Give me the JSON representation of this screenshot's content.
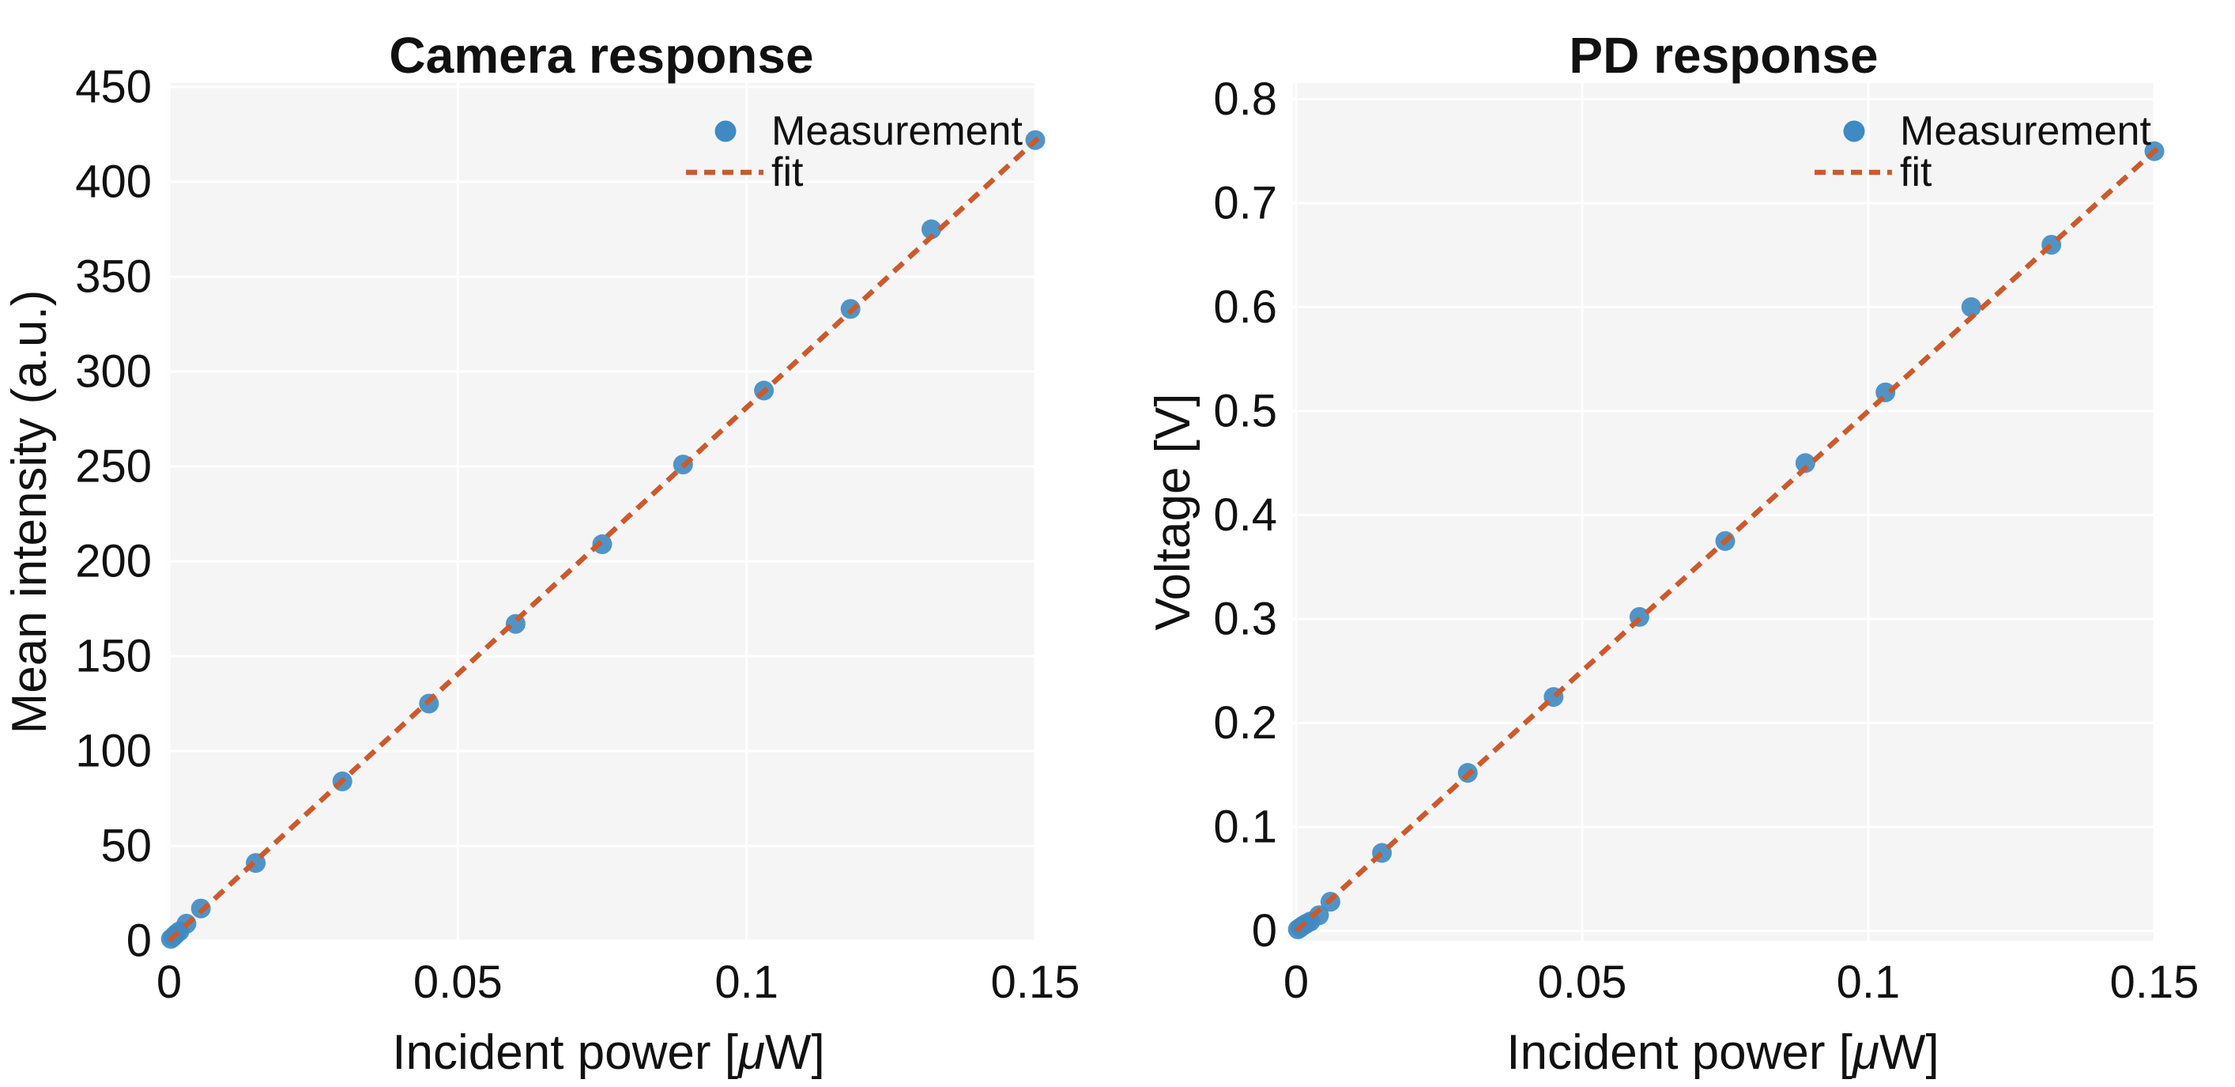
{
  "figure": {
    "background": "#ffffff"
  },
  "colors": {
    "measurement_dot": "#3e8ac2",
    "fit_line": "#cb5a2d",
    "plot_background": "#f5f5f6",
    "gridline": "#ffffff",
    "text": "#111111"
  },
  "chart_data": [
    {
      "id": "camera",
      "type": "scatter",
      "title": "Camera response",
      "xlabel": "Incident power [μW]",
      "ylabel": "Mean intensity (a.u.)",
      "xlim": [
        0,
        0.15
      ],
      "ylim": [
        0,
        450
      ],
      "grid": true,
      "legend_position": "upper right inside",
      "xticks": [
        0,
        0.05,
        0.1,
        0.15
      ],
      "xtick_labels": [
        "0",
        "0.05",
        "0.1",
        "0.15"
      ],
      "yticks": [
        0,
        50,
        100,
        150,
        200,
        250,
        300,
        350,
        400,
        450
      ],
      "ytick_labels": [
        "0",
        "50",
        "100",
        "150",
        "200",
        "250",
        "300",
        "350",
        "400",
        "450"
      ],
      "legend": [
        {
          "label": "Measurement",
          "marker": "dot"
        },
        {
          "label": "fit",
          "marker": "dashed-line"
        }
      ],
      "series": [
        {
          "name": "Measurement",
          "type": "scatter",
          "x": [
            0.0003,
            0.0007,
            0.0012,
            0.0018,
            0.003,
            0.0055,
            0.015,
            0.03,
            0.045,
            0.06,
            0.075,
            0.089,
            0.103,
            0.118,
            0.132,
            0.15
          ],
          "y": [
            1,
            2,
            3.5,
            5,
            9,
            17,
            41,
            84,
            125,
            167,
            209,
            251,
            290,
            333,
            375,
            422
          ]
        },
        {
          "name": "fit",
          "type": "line",
          "style": "dashed",
          "x": [
            0,
            0.1505
          ],
          "y": [
            0,
            423
          ]
        }
      ]
    },
    {
      "id": "pd",
      "type": "scatter",
      "title": "PD response",
      "xlabel": "Incident power [μW]",
      "ylabel": "Voltage [V]",
      "xlim": [
        0,
        0.15
      ],
      "ylim": [
        0,
        0.8
      ],
      "grid": true,
      "legend_position": "upper right inside",
      "xticks": [
        0,
        0.05,
        0.1,
        0.15
      ],
      "xtick_labels": [
        "0",
        "0.05",
        "0.1",
        "0.15"
      ],
      "yticks": [
        0,
        0.1,
        0.2,
        0.3,
        0.4,
        0.5,
        0.6,
        0.7,
        0.8
      ],
      "ytick_labels": [
        "0",
        "0.1",
        "0.2",
        "0.3",
        "0.4",
        "0.5",
        "0.6",
        "0.7",
        "0.8"
      ],
      "legend": [
        {
          "label": "Measurement",
          "marker": "dot"
        },
        {
          "label": "fit",
          "marker": "dashed-line"
        }
      ],
      "series": [
        {
          "name": "Measurement",
          "type": "scatter",
          "x": [
            0.0003,
            0.0007,
            0.0012,
            0.0018,
            0.0025,
            0.004,
            0.006,
            0.015,
            0.03,
            0.045,
            0.06,
            0.075,
            0.089,
            0.103,
            0.118,
            0.132,
            0.15
          ],
          "y": [
            0.0015,
            0.003,
            0.005,
            0.007,
            0.009,
            0.015,
            0.028,
            0.075,
            0.152,
            0.225,
            0.302,
            0.375,
            0.45,
            0.518,
            0.6,
            0.66,
            0.75
          ]
        },
        {
          "name": "fit",
          "type": "line",
          "style": "dashed",
          "x": [
            0,
            0.1507
          ],
          "y": [
            0,
            0.7535
          ]
        }
      ]
    }
  ]
}
